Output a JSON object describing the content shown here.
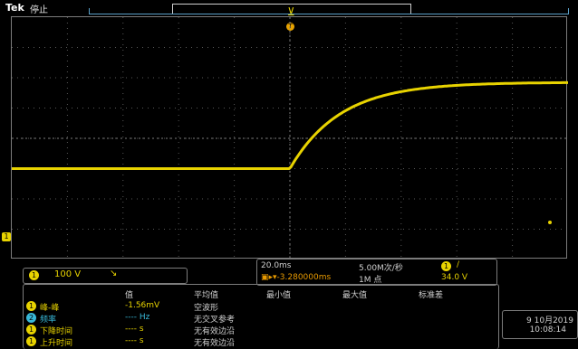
{
  "header": {
    "brand": "Tek",
    "run_state": "停止",
    "trigger_badge": "T"
  },
  "colors": {
    "ch1": "#e8d300",
    "ch2": "#38b8d8",
    "grid": "#7c7c7c",
    "background": "#000000",
    "horizontal_position": "#e89a00"
  },
  "waveform": {
    "channel": "1",
    "marker_label": "1",
    "low_level_div": -1.0,
    "high_level_div": 1.85,
    "step_time_div": 5.0,
    "time_constant_div": 0.9
  },
  "channel_info": {
    "badge": "1",
    "scale": "100 V",
    "bandwidth_icon": "↘"
  },
  "acquisition": {
    "time_per_div": "20.0ms",
    "sample_rate": "5.00M次/秒",
    "trigger_badge": "1",
    "trigger_slope": "/",
    "h_position": "▣▸▾-3.280000ms",
    "record_length": "1M 点",
    "trigger_level": "34.0 V"
  },
  "measurements": {
    "headers": [
      "值",
      "平均值",
      "最小值",
      "最大值",
      "标准差"
    ],
    "rows": [
      {
        "badge": "1",
        "name": "峰-峰",
        "value": "-1.56mV",
        "mean": "空波形",
        "badge_color": "#e8d300",
        "name_color": "#e8d300"
      },
      {
        "badge": "2",
        "name": "频率",
        "value": "---- Hz",
        "mean": "无交叉参考",
        "badge_color": "#38b8d8",
        "name_color": "#38b8d8"
      },
      {
        "badge": "1",
        "name": "下降时间",
        "value": "---- s",
        "mean": "无有效边沿",
        "badge_color": "#e8d300",
        "name_color": "#e8d300"
      },
      {
        "badge": "1",
        "name": "上升时间",
        "value": "---- s",
        "mean": "无有效边沿",
        "badge_color": "#e8d300",
        "name_color": "#e8d300"
      }
    ]
  },
  "datetime": {
    "date": "9 10月2019",
    "time": "10:08:14"
  }
}
